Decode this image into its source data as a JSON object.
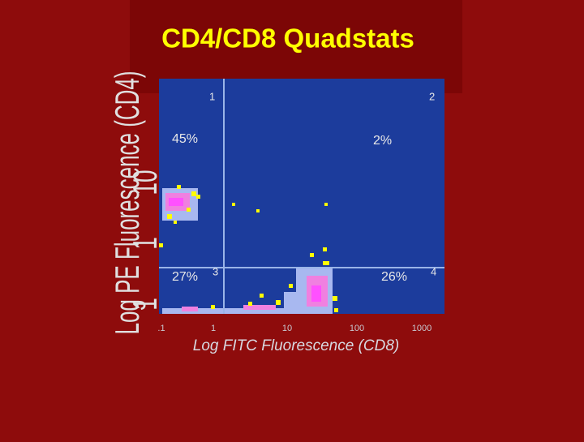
{
  "title": "CD4/CD8 Quadstats",
  "plot": {
    "x_label": "Log FITC Fluorescence (CD8)",
    "y_label": "Log PE Fluorescence (CD4)",
    "x_ticks": [
      ".1",
      "1",
      "10",
      "100",
      "1000"
    ],
    "y_ticks": [
      "1",
      "1",
      "10"
    ],
    "quadrants": [
      {
        "number": "1",
        "percent": "45%"
      },
      {
        "number": "2",
        "percent": "2%"
      },
      {
        "number": "3",
        "percent": "27%"
      },
      {
        "number": "4",
        "percent": "26%"
      }
    ]
  }
}
